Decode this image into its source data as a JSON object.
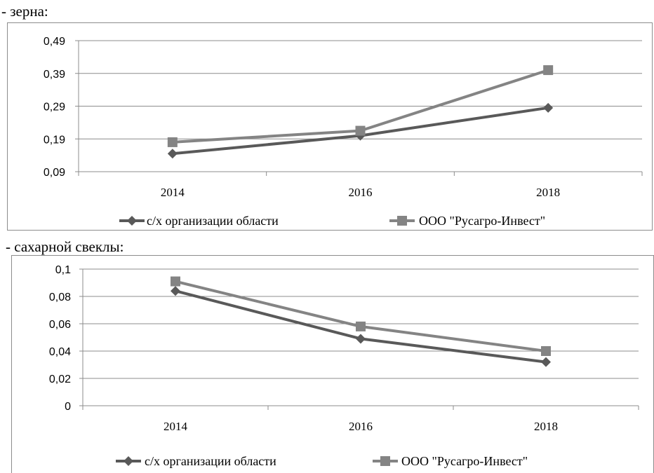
{
  "headings": {
    "grain": "- зерна:",
    "sugar_beet": "- сахарной свеклы:"
  },
  "colors": {
    "series_1": "#595959",
    "series_2": "#848484",
    "grid": "#8c8c8c"
  },
  "chart_data": [
    {
      "type": "line",
      "categories": [
        "2014",
        "2016",
        "2018"
      ],
      "series": [
        {
          "name": "с/х организации области",
          "marker": "diamond",
          "values": [
            0.145,
            0.2,
            0.285
          ]
        },
        {
          "name": "ООО \"Русагро-Инвест\"",
          "marker": "square",
          "values": [
            0.18,
            0.215,
            0.4
          ]
        }
      ],
      "yticks": [
        "0,09",
        "0,19",
        "0,29",
        "0,39",
        "0,49"
      ],
      "ylim": [
        0.09,
        0.49
      ],
      "grid": true,
      "legend": "bottom"
    },
    {
      "type": "line",
      "categories": [
        "2014",
        "2016",
        "2018"
      ],
      "series": [
        {
          "name": "с/х организации области",
          "marker": "diamond",
          "values": [
            0.084,
            0.049,
            0.032
          ]
        },
        {
          "name": "ООО \"Русагро-Инвест\"",
          "marker": "square",
          "values": [
            0.091,
            0.058,
            0.04
          ]
        }
      ],
      "yticks": [
        "0",
        "0,02",
        "0,04",
        "0,06",
        "0,08",
        "0,1"
      ],
      "ylim": [
        0,
        0.1
      ],
      "grid": true,
      "legend": "bottom"
    }
  ]
}
